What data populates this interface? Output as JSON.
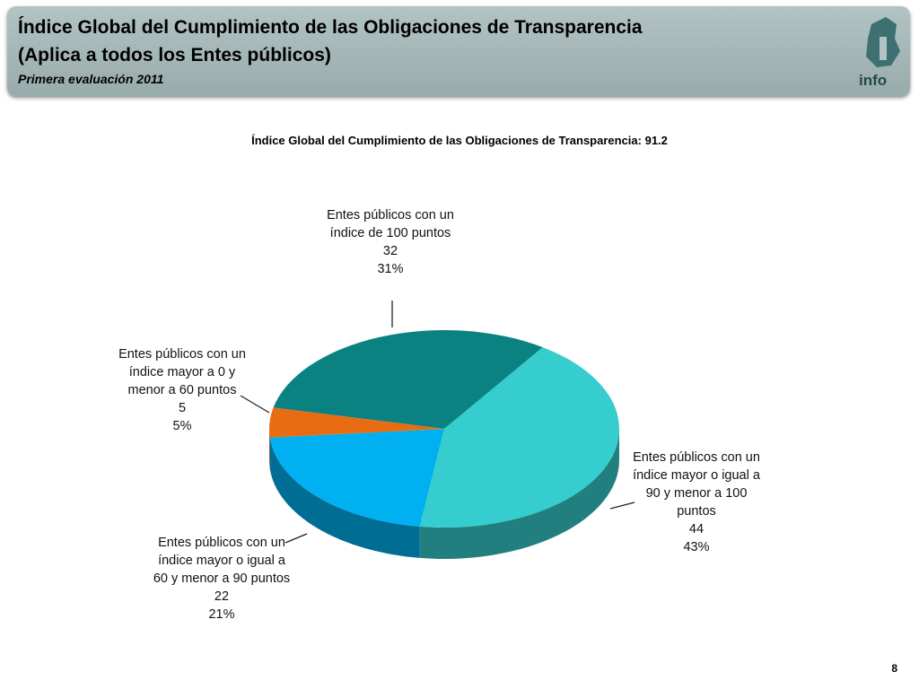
{
  "header": {
    "title_line1": "Índice Global del Cumplimiento de las Obligaciones de Transparencia",
    "title_line2": "(Aplica a todos los Entes públicos)",
    "subtitle": "Primera evaluación 2011",
    "logo_text": "info"
  },
  "chart_data": {
    "type": "pie",
    "title": "Índice Global del Cumplimiento de las Obligaciones de Transparencia: 91.2",
    "categories": [
      "Entes públicos con un índice de 100 puntos",
      "Entes públicos con un índice mayor o igual a 90 y menor a 100 puntos",
      "Entes públicos con un índice mayor o igual a 60 y menor a 90 puntos",
      "Entes públicos con un índice mayor a 0 y menor a 60 puntos"
    ],
    "values": [
      32,
      44,
      22,
      5
    ],
    "percent_labels": [
      "31%",
      "43%",
      "21%",
      "5%"
    ],
    "colors": [
      "#0b8282",
      "#35cdcd",
      "#00b0f0",
      "#e86c12"
    ]
  },
  "page_number": "8"
}
